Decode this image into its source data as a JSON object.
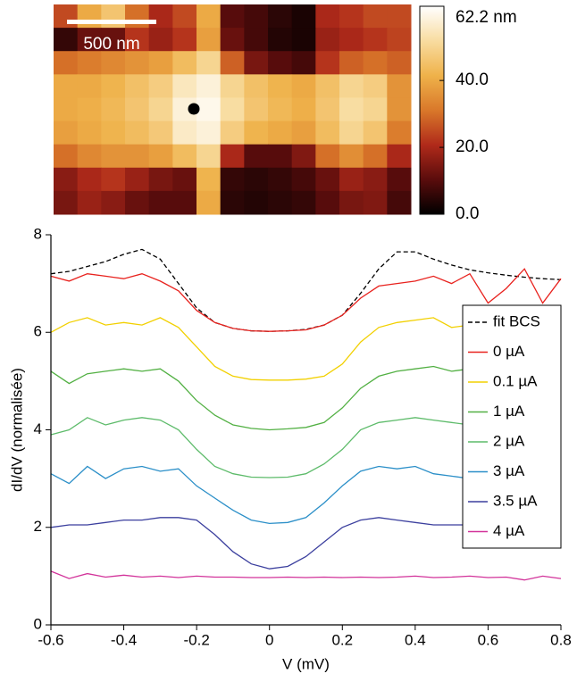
{
  "chart_data": [
    {
      "type": "heatmap",
      "scale_bar_label": "500 nm",
      "colormap": [
        "#000000",
        "#5a0c0c",
        "#b02a1a",
        "#d9782a",
        "#efb24a",
        "#f8dca0",
        "#ffffff"
      ],
      "clim": [
        0,
        62.2
      ],
      "colorbar_ticks": [
        {
          "value": 62.2,
          "label": "62.2 nm"
        },
        {
          "value": 40,
          "label": "40.0"
        },
        {
          "value": 20,
          "label": "20.0"
        },
        {
          "value": 0,
          "label": "0.0"
        }
      ],
      "values": [
        [
          25,
          40,
          46,
          30,
          20,
          25,
          40,
          10,
          8,
          5,
          3,
          20,
          22,
          25,
          25
        ],
        [
          6,
          12,
          12,
          22,
          18,
          22,
          38,
          12,
          8,
          4,
          3,
          18,
          20,
          22,
          24
        ],
        [
          30,
          32,
          34,
          36,
          38,
          44,
          50,
          28,
          14,
          10,
          8,
          22,
          28,
          30,
          28
        ],
        [
          40,
          40,
          42,
          45,
          48,
          55,
          58,
          50,
          45,
          42,
          40,
          45,
          50,
          48,
          36
        ],
        [
          40,
          41,
          43,
          46,
          50,
          58,
          60,
          52,
          46,
          43,
          41,
          46,
          52,
          50,
          36
        ],
        [
          38,
          40,
          42,
          44,
          47,
          56,
          58,
          48,
          42,
          40,
          38,
          44,
          50,
          46,
          32
        ],
        [
          30,
          34,
          36,
          36,
          38,
          44,
          50,
          20,
          10,
          10,
          15,
          30,
          35,
          30,
          20
        ],
        [
          16,
          20,
          22,
          18,
          14,
          12,
          42,
          6,
          5,
          6,
          8,
          12,
          18,
          16,
          10
        ],
        [
          14,
          18,
          16,
          12,
          10,
          10,
          40,
          5,
          4,
          5,
          6,
          10,
          14,
          15,
          8
        ]
      ]
    },
    {
      "type": "line",
      "xlabel": "V (mV)",
      "ylabel": "dI/dV (normalisée)",
      "xlim": [
        -0.6,
        0.8
      ],
      "ylim": [
        0,
        8
      ],
      "xticks": [
        -0.6,
        -0.4,
        -0.2,
        0,
        0.2,
        0.4,
        0.6,
        0.8
      ],
      "yticks": [
        0,
        2,
        4,
        6,
        8
      ],
      "legend": "right",
      "x": [
        -0.6,
        -0.55,
        -0.5,
        -0.45,
        -0.4,
        -0.35,
        -0.3,
        -0.25,
        -0.2,
        -0.15,
        -0.1,
        -0.05,
        0,
        0.05,
        0.1,
        0.15,
        0.2,
        0.25,
        0.3,
        0.35,
        0.4,
        0.45,
        0.5,
        0.55,
        0.6,
        0.65,
        0.7,
        0.75,
        0.8
      ],
      "series": [
        {
          "name": "fit BCS",
          "color": "#000000",
          "style": "dashed",
          "values": [
            7.2,
            7.25,
            7.35,
            7.45,
            7.6,
            7.7,
            7.5,
            7.0,
            6.5,
            6.2,
            6.08,
            6.03,
            6.02,
            6.03,
            6.06,
            6.15,
            6.35,
            6.8,
            7.3,
            7.65,
            7.65,
            7.5,
            7.38,
            7.28,
            7.22,
            7.17,
            7.13,
            7.1,
            7.08
          ]
        },
        {
          "name": "0 µA",
          "color": "#e8221e",
          "style": "solid",
          "values": [
            7.15,
            7.05,
            7.2,
            7.15,
            7.1,
            7.2,
            7.05,
            6.85,
            6.45,
            6.2,
            6.08,
            6.03,
            6.02,
            6.03,
            6.05,
            6.15,
            6.35,
            6.7,
            6.95,
            7.0,
            7.05,
            7.15,
            7.0,
            7.2,
            6.6,
            6.9,
            7.3,
            6.6,
            7.1
          ]
        },
        {
          "name": "0.1 µA",
          "color": "#f2d000",
          "style": "solid",
          "values": [
            6.0,
            6.2,
            6.3,
            6.15,
            6.2,
            6.15,
            6.3,
            6.1,
            5.7,
            5.3,
            5.1,
            5.03,
            5.02,
            5.02,
            5.04,
            5.1,
            5.35,
            5.8,
            6.1,
            6.2,
            6.25,
            6.3,
            6.1,
            6.15,
            6.2,
            6.1,
            6.0,
            6.05,
            6.0
          ]
        },
        {
          "name": "1 µA",
          "color": "#52b043",
          "style": "solid",
          "values": [
            5.2,
            4.95,
            5.15,
            5.2,
            5.25,
            5.2,
            5.25,
            5.0,
            4.6,
            4.3,
            4.1,
            4.03,
            4.0,
            4.02,
            4.05,
            4.15,
            4.45,
            4.85,
            5.1,
            5.2,
            5.25,
            5.3,
            5.2,
            5.25,
            5.2,
            5.2,
            5.2,
            5.15,
            5.2
          ]
        },
        {
          "name": "2 µA",
          "color": "#5dbb6a",
          "style": "solid",
          "values": [
            3.9,
            4.0,
            4.25,
            4.1,
            4.2,
            4.25,
            4.2,
            4.0,
            3.6,
            3.25,
            3.1,
            3.03,
            3.02,
            3.03,
            3.1,
            3.3,
            3.6,
            4.0,
            4.15,
            4.2,
            4.25,
            4.2,
            4.15,
            4.1,
            4.1,
            4.0,
            4.0,
            4.0,
            3.9
          ]
        },
        {
          "name": "3 µA",
          "color": "#2b8fc8",
          "style": "solid",
          "values": [
            3.1,
            2.9,
            3.25,
            3.0,
            3.2,
            3.25,
            3.15,
            3.2,
            2.85,
            2.6,
            2.35,
            2.15,
            2.08,
            2.1,
            2.2,
            2.5,
            2.85,
            3.15,
            3.25,
            3.2,
            3.25,
            3.1,
            3.05,
            3.0,
            3.0,
            3.0,
            3.0,
            3.0,
            2.95
          ]
        },
        {
          "name": "3.5 µA",
          "color": "#3b3f9e",
          "style": "solid",
          "values": [
            2.0,
            2.05,
            2.05,
            2.1,
            2.15,
            2.15,
            2.2,
            2.2,
            2.15,
            1.85,
            1.5,
            1.25,
            1.15,
            1.2,
            1.4,
            1.7,
            2.0,
            2.15,
            2.2,
            2.15,
            2.1,
            2.05,
            2.05,
            2.05,
            2.0,
            2.0,
            2.0,
            2.0,
            2.0
          ]
        },
        {
          "name": "4 µA",
          "color": "#d2339a",
          "style": "solid",
          "values": [
            1.1,
            0.95,
            1.05,
            0.98,
            1.02,
            0.98,
            1.0,
            0.97,
            1.0,
            0.98,
            0.98,
            0.97,
            0.97,
            0.98,
            0.97,
            0.98,
            0.97,
            0.98,
            0.97,
            0.98,
            1.0,
            0.97,
            0.98,
            1.0,
            0.97,
            0.98,
            0.92,
            1.0,
            0.95
          ]
        }
      ]
    }
  ]
}
